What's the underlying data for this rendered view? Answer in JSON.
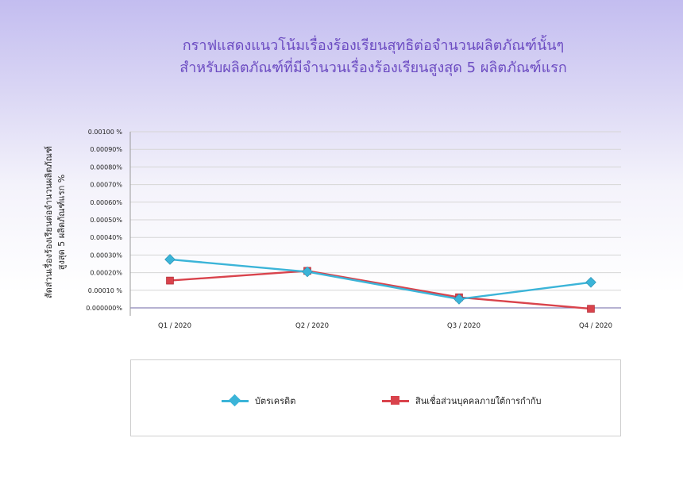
{
  "chart_data": {
    "type": "line",
    "title_line1": "กราฟแสดงแนวโน้มเรื่องร้องเรียนสุทธิต่อจำนวนผลิตภัณฑ์นั้นๆ",
    "title_line2": "สำหรับผลิตภัณฑ์ที่มีจำนวนเรื่องร้องเรียนสูงสุด 5 ผลิตภัณฑ์แรก",
    "ylabel_line1": "สัดส่วนเรื่องร้องเรียนต่อจำนวนผลิตภัณฑ์",
    "ylabel_line2": "สูงสุด 5 ผลิตภัณฑ์แรก    %",
    "categories": [
      "Q1 / 2020",
      "Q2 / 2020",
      "Q3 / 2020",
      "Q4 / 2020"
    ],
    "y_ticks": [
      "0.000000%",
      "0.00010 %",
      "0.00020%",
      "0.00030%",
      "0.00040%",
      "0.00050%",
      "0.00060%",
      "0.00070%",
      "0.00080%",
      "0.00090%",
      "0.00100 %"
    ],
    "ylim": [
      0,
      0.001
    ],
    "grid": true,
    "legend_position": "bottom",
    "series": [
      {
        "name": "บัตรเครดิต",
        "color": "#3bb4d8",
        "values": [
          0.000275,
          0.000205,
          5e-05,
          0.000145
        ]
      },
      {
        "name": "สินเชื่อส่วนบุคคลภายใต้การกำกับ",
        "color": "#d9434c",
        "values": [
          0.000155,
          0.00021,
          6e-05,
          -5e-06
        ]
      }
    ]
  }
}
